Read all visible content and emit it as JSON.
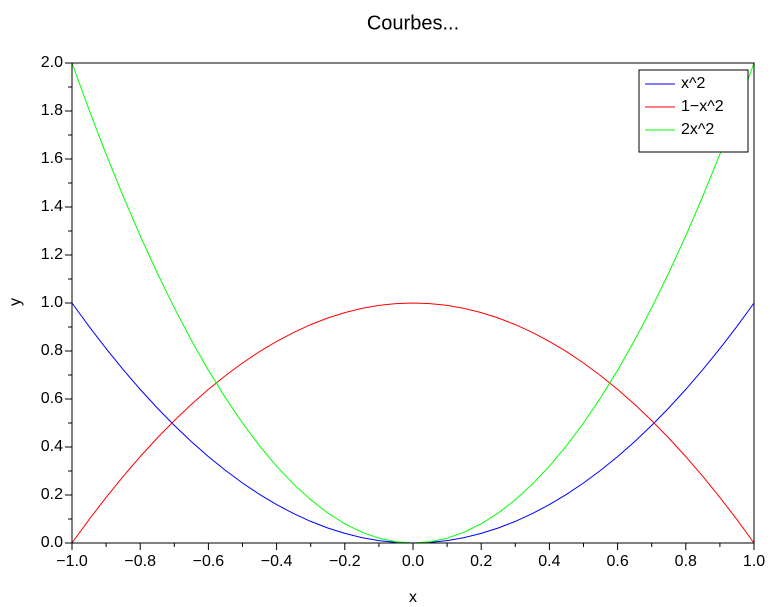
{
  "chart_data": {
    "type": "line",
    "title": "Courbes...",
    "x_label": "x",
    "y_label": "y",
    "x": [
      -1,
      -0.95,
      -0.9,
      -0.85,
      -0.8,
      -0.75,
      -0.7,
      -0.65,
      -0.6,
      -0.55,
      -0.5,
      -0.45,
      -0.4,
      -0.35,
      -0.3,
      -0.25,
      -0.2,
      -0.15,
      -0.1,
      -0.05,
      0,
      0.05,
      0.1,
      0.15,
      0.2,
      0.25,
      0.3,
      0.35,
      0.4,
      0.45,
      0.5,
      0.55,
      0.6,
      0.65,
      0.7,
      0.75,
      0.8,
      0.85,
      0.9,
      0.95,
      1
    ],
    "series": [
      {
        "name": "x^2",
        "color": "#0000ff",
        "values": [
          1,
          0.9025,
          0.81,
          0.7225,
          0.64,
          0.5625,
          0.49,
          0.4225,
          0.36,
          0.3025,
          0.25,
          0.2025,
          0.16,
          0.1225,
          0.09,
          0.0625,
          0.04,
          0.0225,
          0.01,
          0.0025,
          0,
          0.0025,
          0.01,
          0.0225,
          0.04,
          0.0625,
          0.09,
          0.1225,
          0.16,
          0.2025,
          0.25,
          0.3025,
          0.36,
          0.4225,
          0.49,
          0.5625,
          0.64,
          0.7225,
          0.81,
          0.9025,
          1
        ]
      },
      {
        "name": "1−x^2",
        "color": "#ff0000",
        "values": [
          0,
          0.0975,
          0.19,
          0.2775,
          0.36,
          0.4375,
          0.51,
          0.5775,
          0.64,
          0.6975,
          0.75,
          0.7975,
          0.84,
          0.8775,
          0.91,
          0.9375,
          0.96,
          0.9775,
          0.99,
          0.9975,
          1,
          0.9975,
          0.99,
          0.9775,
          0.96,
          0.9375,
          0.91,
          0.8775,
          0.84,
          0.7975,
          0.75,
          0.6975,
          0.64,
          0.5775,
          0.51,
          0.4375,
          0.36,
          0.2775,
          0.19,
          0.0975,
          0
        ]
      },
      {
        "name": "2x^2",
        "color": "#00ff00",
        "values": [
          2,
          1.805,
          1.62,
          1.445,
          1.28,
          1.125,
          0.98,
          0.845,
          0.72,
          0.605,
          0.5,
          0.405,
          0.32,
          0.245,
          0.18,
          0.125,
          0.08,
          0.045,
          0.02,
          0.005,
          0,
          0.005,
          0.02,
          0.045,
          0.08,
          0.125,
          0.18,
          0.245,
          0.32,
          0.405,
          0.5,
          0.605,
          0.72,
          0.845,
          0.98,
          1.125,
          1.28,
          1.445,
          1.62,
          1.805,
          2
        ]
      }
    ],
    "xlim": [
      -1,
      1
    ],
    "xticks": [
      {
        "value": -1,
        "label": "−1.0"
      },
      {
        "value": -0.8,
        "label": "−0.8"
      },
      {
        "value": -0.6,
        "label": "−0.6"
      },
      {
        "value": -0.4,
        "label": "−0.4"
      },
      {
        "value": -0.2,
        "label": "−0.2"
      },
      {
        "value": 0,
        "label": "0.0"
      },
      0.2,
      0.4,
      0.6,
      0.8,
      {
        "value": 1,
        "label": "1.0"
      }
    ],
    "ylim": [
      0,
      2
    ],
    "yticks": [
      {
        "value": 0,
        "label": "0.0"
      },
      0.2,
      0.4,
      0.6,
      0.8,
      {
        "value": 1,
        "label": "1.0"
      },
      1.2,
      1.4,
      1.6,
      1.8,
      {
        "value": 2,
        "label": "2.0"
      }
    ],
    "legend": "upper right"
  }
}
